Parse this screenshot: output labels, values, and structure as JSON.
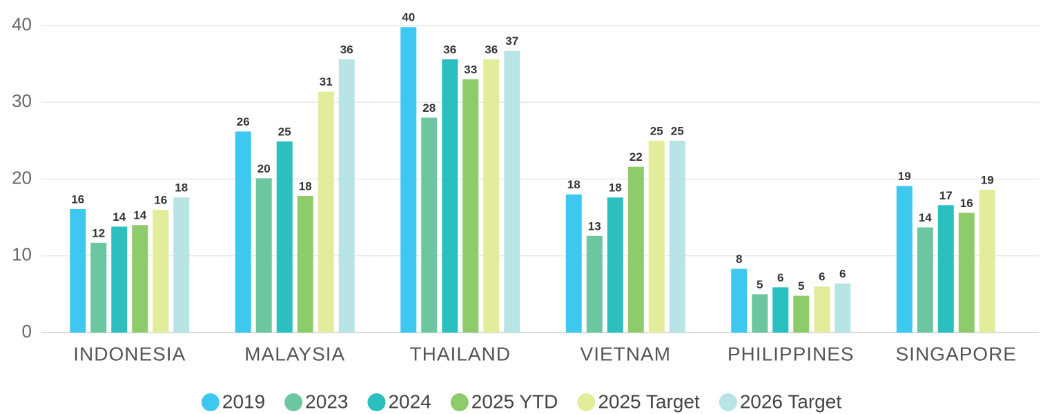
{
  "chart_data": {
    "type": "bar",
    "categories": [
      "INDONESIA",
      "MALAYSIA",
      "THAILAND",
      "VIETNAM",
      "PHILIPPINES",
      "SINGAPORE"
    ],
    "series": [
      {
        "name": "2019",
        "color": "#3ec8f0",
        "values": [
          16.1,
          26.2,
          39.8,
          18.0,
          8.3,
          19.1
        ],
        "value_labels": [
          "16",
          "26",
          "40",
          "18",
          "8",
          "19"
        ]
      },
      {
        "name": "2023",
        "color": "#6cc7a0",
        "values": [
          11.7,
          20.1,
          28.0,
          12.6,
          5.0,
          13.7
        ],
        "value_labels": [
          "12",
          "20",
          "28",
          "13",
          "5",
          "14"
        ]
      },
      {
        "name": "2024",
        "color": "#2bbfbf",
        "values": [
          13.8,
          24.9,
          35.6,
          17.6,
          5.9,
          16.6
        ],
        "value_labels": [
          "14",
          "25",
          "36",
          "18",
          "6",
          "17"
        ]
      },
      {
        "name": "2025 YTD",
        "color": "#8ecb6a",
        "values": [
          14.0,
          17.8,
          33.0,
          21.6,
          4.8,
          15.6
        ],
        "value_labels": [
          "14",
          "18",
          "33",
          "22",
          "5",
          "16"
        ]
      },
      {
        "name": "2025 Target",
        "color": "#e2ec9a",
        "values": [
          16.0,
          31.4,
          35.6,
          25.0,
          6.0,
          18.6
        ],
        "value_labels": [
          "16",
          "31",
          "36",
          "25",
          "6",
          "19"
        ]
      },
      {
        "name": "2026 Target",
        "color": "#b8e4e6",
        "values": [
          17.6,
          35.6,
          36.7,
          25.0,
          6.4,
          null
        ],
        "value_labels": [
          "18",
          "36",
          "37",
          "25",
          "6",
          null
        ]
      }
    ],
    "ylim": [
      0,
      41.5
    ],
    "yticks": [
      0,
      10,
      20,
      30,
      40
    ],
    "grid": true,
    "legend": "bottom"
  }
}
